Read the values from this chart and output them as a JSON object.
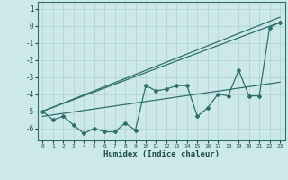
{
  "title": "",
  "xlabel": "Humidex (Indice chaleur)",
  "ylabel": "",
  "bg_color": "#cce8e8",
  "line_color": "#2e6e6e",
  "grid_color": "#afd0d0",
  "xlim": [
    -0.5,
    23.5
  ],
  "ylim": [
    -6.7,
    1.4
  ],
  "yticks": [
    1,
    0,
    -1,
    -2,
    -3,
    -4,
    -5,
    -6
  ],
  "xticks": [
    0,
    1,
    2,
    3,
    4,
    5,
    6,
    7,
    8,
    9,
    10,
    11,
    12,
    13,
    14,
    15,
    16,
    17,
    18,
    19,
    20,
    21,
    22,
    23
  ],
  "line1_x": [
    0,
    1,
    2,
    3,
    4,
    5,
    6,
    7,
    8,
    9,
    10,
    11,
    12,
    13,
    14,
    15,
    16,
    17,
    18,
    19,
    20,
    21,
    22,
    23
  ],
  "line1_y": [
    -5.0,
    -5.5,
    -5.3,
    -5.8,
    -6.3,
    -6.0,
    -6.2,
    -6.2,
    -5.7,
    -6.1,
    -3.5,
    -3.8,
    -3.7,
    -3.5,
    -3.5,
    -5.3,
    -4.8,
    -4.0,
    -4.1,
    -2.6,
    -4.1,
    -4.1,
    -0.1,
    0.2
  ],
  "line2_x": [
    0,
    23
  ],
  "line2_y": [
    -5.0,
    0.5
  ],
  "line3_x": [
    0,
    23
  ],
  "line3_y": [
    -5.0,
    0.2
  ],
  "line4_x": [
    0,
    23
  ],
  "line4_y": [
    -5.3,
    -3.3
  ]
}
